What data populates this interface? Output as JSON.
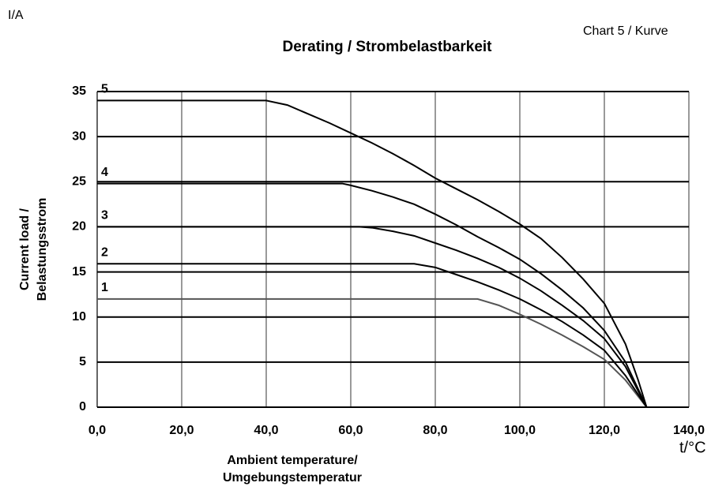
{
  "chart_data": {
    "type": "line",
    "title": "Derating / Strombelastbarkeit",
    "y_unit": "I/A",
    "chart_ref": "Chart 5 / Kurve",
    "x_unit": "t/°C",
    "ylabel": [
      "Current load /",
      "Belastungsstrom"
    ],
    "xlabel": [
      "Ambient temperature/",
      "Umgebungstemperatur"
    ],
    "xlim": [
      0,
      140
    ],
    "ylim": [
      0,
      35
    ],
    "xticks": [
      {
        "value": 0,
        "label": "0,0"
      },
      {
        "value": 20,
        "label": "20,0"
      },
      {
        "value": 40,
        "label": "40,0"
      },
      {
        "value": 60,
        "label": "60,0"
      },
      {
        "value": 80,
        "label": "80,0"
      },
      {
        "value": 100,
        "label": "100,0"
      },
      {
        "value": 120,
        "label": "120,0"
      },
      {
        "value": 140,
        "label": "140,0"
      }
    ],
    "yticks": [
      0,
      5,
      10,
      15,
      20,
      25,
      30,
      35
    ],
    "grid": true,
    "series": [
      {
        "name": "1",
        "color": "#555555",
        "x": [
          0,
          90,
          95,
          100,
          105,
          110,
          115,
          120,
          125,
          130
        ],
        "values": [
          12,
          12,
          11.3,
          10.3,
          9.2,
          8,
          6.7,
          5.3,
          3,
          0
        ]
      },
      {
        "name": "2",
        "color": "#000000",
        "x": [
          0,
          75,
          80,
          85,
          90,
          95,
          100,
          105,
          110,
          115,
          120,
          125,
          130
        ],
        "values": [
          15.9,
          15.9,
          15.5,
          14.7,
          13.9,
          13,
          12,
          10.8,
          9.5,
          8,
          6.3,
          3.5,
          0
        ]
      },
      {
        "name": "3",
        "color": "#000000",
        "x": [
          0,
          62,
          65,
          70,
          75,
          80,
          85,
          90,
          95,
          100,
          105,
          110,
          115,
          120,
          125,
          130
        ],
        "values": [
          20,
          20,
          19.9,
          19.5,
          19,
          18.2,
          17.4,
          16.5,
          15.5,
          14.3,
          12.9,
          11.3,
          9.6,
          7.6,
          4.5,
          0
        ]
      },
      {
        "name": "4",
        "color": "#000000",
        "x": [
          0,
          58,
          60,
          65,
          70,
          75,
          80,
          85,
          90,
          95,
          100,
          105,
          110,
          115,
          120,
          125,
          130
        ],
        "values": [
          24.8,
          24.8,
          24.6,
          24,
          23.3,
          22.5,
          21.4,
          20.2,
          18.9,
          17.7,
          16.4,
          14.8,
          13,
          11,
          8.5,
          5,
          0
        ]
      },
      {
        "name": "5",
        "color": "#000000",
        "x": [
          0,
          40,
          45,
          50,
          55,
          60,
          65,
          70,
          75,
          80,
          85,
          90,
          95,
          100,
          105,
          110,
          115,
          120,
          125,
          128,
          130
        ],
        "values": [
          34,
          34,
          33.5,
          32.5,
          31.5,
          30.4,
          29.3,
          28.1,
          26.8,
          25.4,
          24.2,
          23,
          21.7,
          20.3,
          18.7,
          16.6,
          14.2,
          11.5,
          7,
          3,
          0
        ]
      }
    ]
  }
}
